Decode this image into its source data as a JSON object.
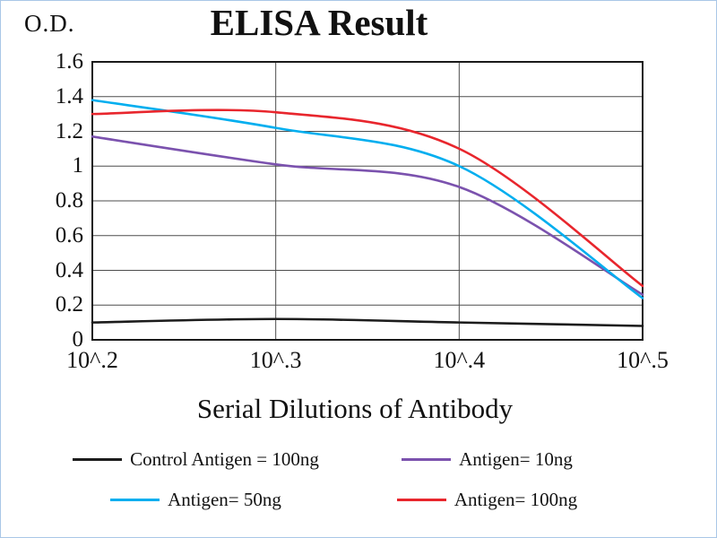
{
  "chart_data": {
    "type": "line",
    "title": "ELISA Result",
    "ylabel": "O.D.",
    "xlabel": "Serial Dilutions of Antibody",
    "categories": [
      "10^.2",
      "10^.3",
      "10^.4",
      "10^.5"
    ],
    "ylim": [
      0,
      1.6
    ],
    "ytick_labels": [
      "0",
      "0.2",
      "0.4",
      "0.6",
      "0.8",
      "1",
      "1.2",
      "1.4",
      "1.6"
    ],
    "grid": true,
    "grid_color": "#4d4d4d",
    "axis_color": "#1a1a1a",
    "legend_position": "bottom",
    "series": [
      {
        "name": "Control Antigen = 100ng",
        "color": "#1c1c1c",
        "values": [
          0.1,
          0.12,
          0.1,
          0.08
        ]
      },
      {
        "name": "Antigen= 10ng",
        "color": "#7b52ae",
        "values": [
          1.17,
          1.01,
          0.88,
          0.26
        ]
      },
      {
        "name": "Antigen= 50ng",
        "color": "#00aeef",
        "values": [
          1.38,
          1.22,
          1.0,
          0.24
        ]
      },
      {
        "name": "Antigen= 100ng",
        "color": "#e8262d",
        "values": [
          1.3,
          1.31,
          1.1,
          0.31
        ]
      }
    ]
  }
}
